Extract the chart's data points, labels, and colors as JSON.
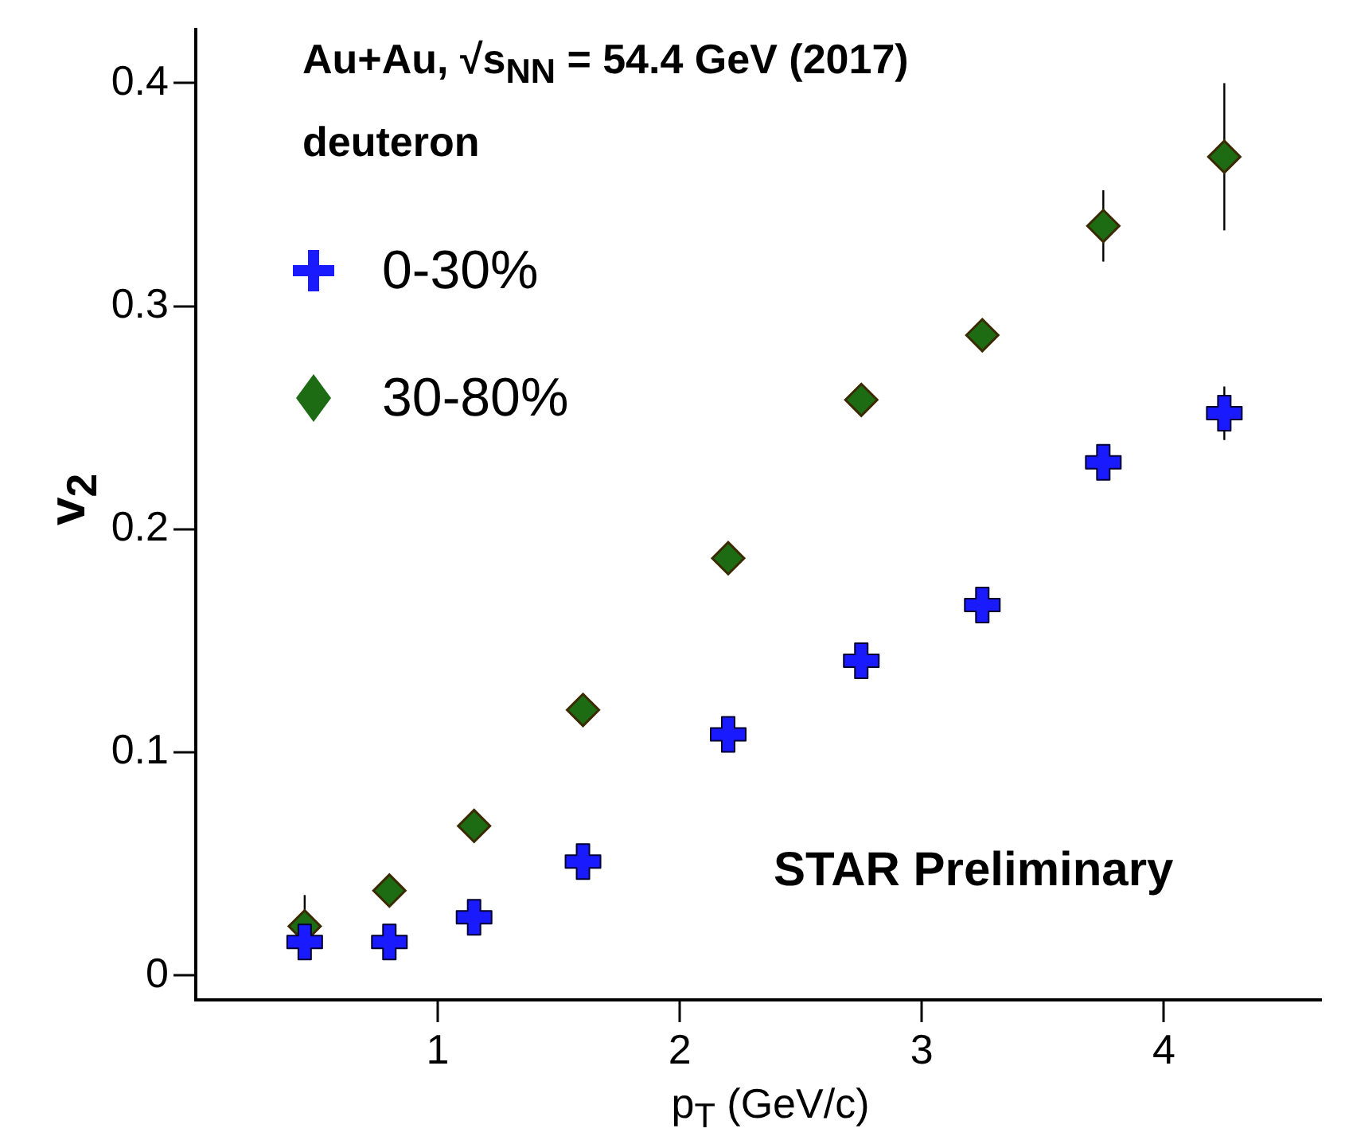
{
  "chart_data": {
    "type": "scatter",
    "xlabel": "p$_{T}$ (GeV/c)",
    "ylabel": "v$_{2}$",
    "xlim": [
      0,
      4.65
    ],
    "xticks": [
      1,
      2,
      3,
      4
    ],
    "ylim": [
      -0.011,
      0.424
    ],
    "yticks": [
      0,
      0.1,
      0.2,
      0.3,
      0.4
    ],
    "grid": false,
    "legend": "top left",
    "annotations": [
      "Au+Au, √s$_{NN}$ = 54.4 GeV (2017)",
      "deuteron",
      "STAR Preliminary"
    ],
    "series": [
      {
        "name": "0-30%",
        "color": "#1a1aff",
        "marker": "cross",
        "x": [
          0.45,
          0.8,
          1.15,
          1.6,
          2.2,
          2.75,
          3.25,
          3.75,
          4.25
        ],
        "values": [
          0.015,
          0.015,
          0.026,
          0.051,
          0.108,
          0.141,
          0.166,
          0.23,
          0.252
        ],
        "errors": [
          null,
          null,
          null,
          null,
          null,
          null,
          null,
          null,
          0.012
        ]
      },
      {
        "name": "30-80%",
        "color": "#1d6b12",
        "marker": "diamond",
        "x": [
          0.45,
          0.8,
          1.15,
          1.6,
          2.2,
          2.75,
          3.25,
          3.75,
          4.25
        ],
        "values": [
          0.022,
          0.038,
          0.067,
          0.119,
          0.187,
          0.258,
          0.287,
          0.336,
          0.367
        ],
        "errors": [
          0.014,
          null,
          null,
          null,
          null,
          null,
          null,
          0.016,
          0.033
        ]
      }
    ]
  }
}
